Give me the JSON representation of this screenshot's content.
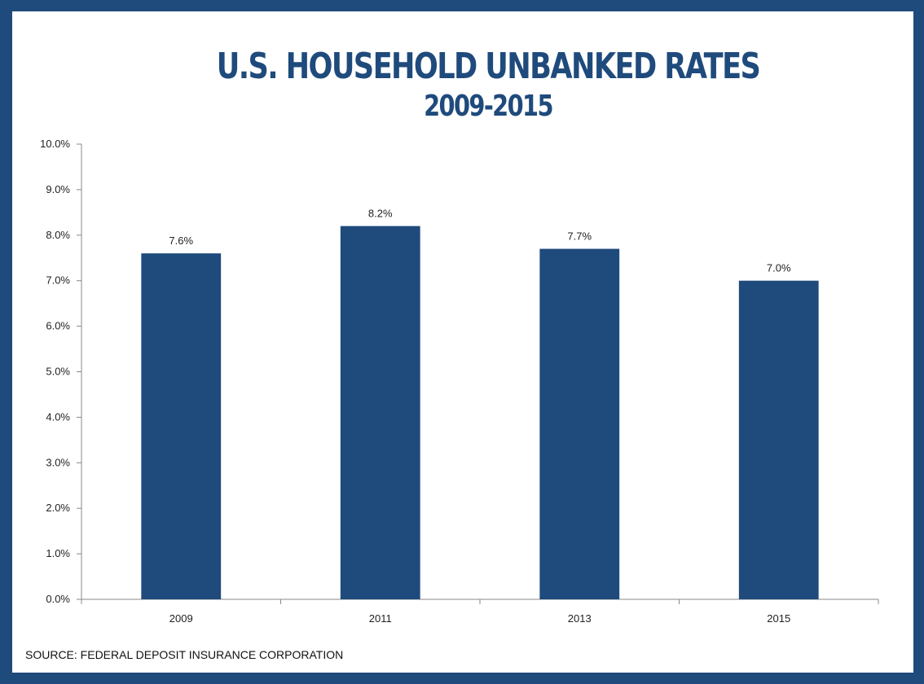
{
  "chart_data": {
    "type": "bar",
    "title": "U.S. HOUSEHOLD UNBANKED RATES",
    "subtitle": "2009-2015",
    "categories": [
      "2009",
      "2011",
      "2013",
      "2015"
    ],
    "values": [
      7.6,
      8.2,
      7.7,
      7.0
    ],
    "data_labels": [
      "7.6%",
      "8.2%",
      "7.7%",
      "7.0%"
    ],
    "ylim": [
      0,
      10
    ],
    "yticks": [
      0,
      1,
      2,
      3,
      4,
      5,
      6,
      7,
      8,
      9,
      10
    ],
    "ytick_labels": [
      "0.0%",
      "1.0%",
      "2.0%",
      "3.0%",
      "4.0%",
      "5.0%",
      "6.0%",
      "7.0%",
      "8.0%",
      "9.0%",
      "10.0%"
    ],
    "xlabel": "",
    "ylabel": "",
    "grid": false,
    "bar_color": "#1f4a7c"
  },
  "source": "SOURCE: FEDERAL DEPOSIT INSURANCE CORPORATION",
  "colors": {
    "frame": "#1f4a7c",
    "background": "#ffffff",
    "title": "#1f4a7c"
  }
}
